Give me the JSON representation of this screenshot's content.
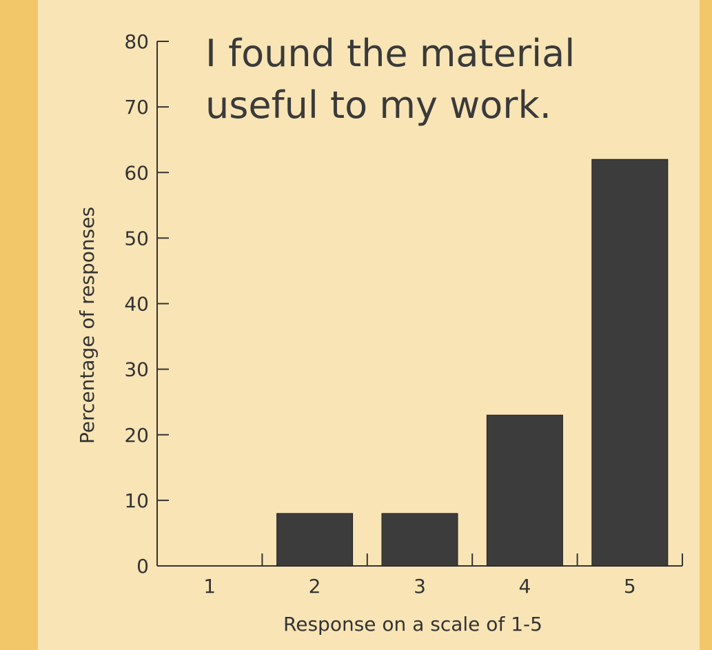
{
  "chart_data": {
    "type": "bar",
    "title": "I found the material useful to my work.",
    "x_label": "Response on a scale of 1-5",
    "y_label": "Percentage of responses",
    "categories": [
      "1",
      "2",
      "3",
      "4",
      "5"
    ],
    "values": [
      0,
      8,
      8,
      23,
      62
    ],
    "color": "#3c3c3c",
    "ylim": [
      0,
      80
    ],
    "yticks": [
      0,
      10,
      20,
      30,
      40,
      50,
      60,
      70,
      80
    ],
    "grid": false
  }
}
